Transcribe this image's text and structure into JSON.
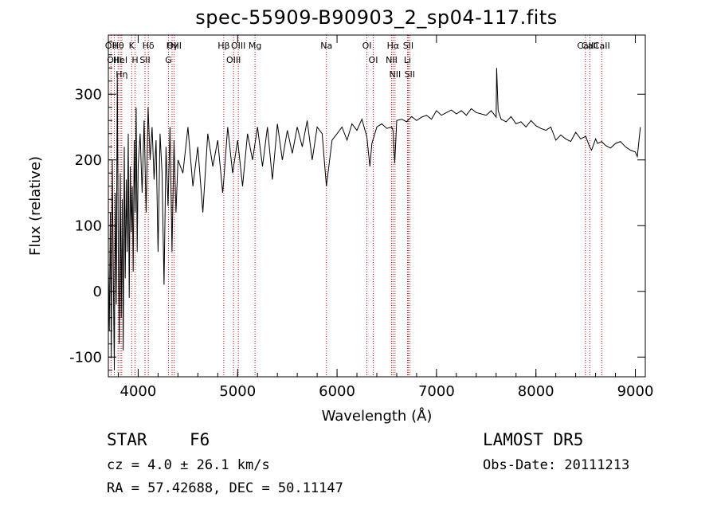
{
  "title": "spec-55909-B90903_2_sp04-117.fits",
  "info": {
    "star_class": "STAR",
    "subclass": "F6",
    "survey": "LAMOST DR5",
    "cz": "cz = 4.0 ± 26.1 km/s",
    "obs_date": "Obs-Date: 20111213",
    "radec": "RA =  57.42688, DEC =  50.11147"
  },
  "colors": {
    "axis": "#000000",
    "spectrum": "#000000",
    "line_marker": "#cc0000",
    "background": "#ffffff"
  },
  "chart_data": {
    "type": "line",
    "title": "spec-55909-B90903_2_sp04-117.fits",
    "xlabel": "Wavelength (Å)",
    "ylabel": "Flux (relative)",
    "xlim": [
      3700,
      9100
    ],
    "ylim": [
      -130,
      390
    ],
    "xticks": [
      4000,
      5000,
      6000,
      7000,
      8000,
      9000
    ],
    "yticks": [
      -100,
      0,
      100,
      200,
      300
    ],
    "grid": false,
    "series": [
      {
        "x": [
          3700,
          3710,
          3720,
          3730,
          3740,
          3750,
          3760,
          3770,
          3780,
          3790,
          3800,
          3810,
          3820,
          3830,
          3840,
          3850,
          3860,
          3870,
          3880,
          3890,
          3900,
          3910,
          3920,
          3930,
          3940,
          3950,
          3960,
          3970,
          3980,
          3990,
          4000,
          4020,
          4040,
          4060,
          4080,
          4100,
          4120,
          4140,
          4160,
          4180,
          4200,
          4220,
          4240,
          4260,
          4280,
          4300,
          4320,
          4340,
          4360,
          4380,
          4400,
          4450,
          4500,
          4550,
          4600,
          4650,
          4700,
          4750,
          4800,
          4850,
          4861,
          4900,
          4950,
          5000,
          5050,
          5100,
          5150,
          5200,
          5250,
          5300,
          5350,
          5400,
          5450,
          5500,
          5550,
          5600,
          5650,
          5700,
          5750,
          5800,
          5850,
          5893,
          5950,
          6000,
          6050,
          6100,
          6150,
          6200,
          6250,
          6300,
          6330,
          6350,
          6400,
          6450,
          6500,
          6550,
          6563,
          6580,
          6600,
          6650,
          6700,
          6750,
          6800,
          6850,
          6900,
          6950,
          7000,
          7050,
          7100,
          7150,
          7200,
          7250,
          7300,
          7350,
          7400,
          7450,
          7500,
          7550,
          7600,
          7605,
          7620,
          7650,
          7700,
          7750,
          7800,
          7850,
          7900,
          7950,
          8000,
          8050,
          8100,
          8150,
          8200,
          8250,
          8300,
          8350,
          8400,
          8450,
          8500,
          8540,
          8560,
          8600,
          8620,
          8660,
          8700,
          8750,
          8800,
          8850,
          8900,
          8950,
          9000,
          9020,
          9050
        ],
        "y": [
          40,
          -60,
          120,
          -100,
          200,
          30,
          -120,
          150,
          -20,
          330,
          60,
          -80,
          180,
          -40,
          140,
          -90,
          220,
          20,
          170,
          60,
          240,
          -10,
          190,
          90,
          160,
          30,
          230,
          120,
          280,
          60,
          190,
          240,
          150,
          260,
          120,
          280,
          200,
          250,
          170,
          230,
          60,
          240,
          180,
          10,
          220,
          130,
          250,
          60,
          230,
          120,
          200,
          180,
          250,
          160,
          220,
          120,
          240,
          190,
          230,
          150,
          170,
          250,
          180,
          230,
          160,
          240,
          200,
          250,
          190,
          250,
          170,
          255,
          200,
          245,
          210,
          250,
          220,
          260,
          200,
          250,
          240,
          160,
          230,
          240,
          250,
          230,
          255,
          245,
          262,
          235,
          190,
          225,
          250,
          255,
          248,
          250,
          245,
          195,
          260,
          262,
          258,
          266,
          260,
          265,
          268,
          262,
          275,
          268,
          272,
          276,
          270,
          275,
          268,
          278,
          272,
          270,
          268,
          275,
          265,
          340,
          275,
          262,
          258,
          266,
          255,
          258,
          250,
          260,
          252,
          248,
          245,
          250,
          230,
          238,
          232,
          228,
          242,
          232,
          236,
          220,
          215,
          232,
          225,
          228,
          222,
          218,
          225,
          228,
          220,
          215,
          212,
          205,
          250
        ]
      }
    ],
    "line_markers": [
      {
        "label": "Hθ",
        "x": 3798
      },
      {
        "label": "OII",
        "x": 3727
      },
      {
        "label": "OIII",
        "x": 3760
      },
      {
        "label": "HeI",
        "x": 3820
      },
      {
        "label": "Hη",
        "x": 3835
      },
      {
        "label": "K",
        "x": 3934
      },
      {
        "label": "H",
        "x": 3969
      },
      {
        "label": "Hδ",
        "x": 4102
      },
      {
        "label": "SII",
        "x": 4069
      },
      {
        "label": "OIII",
        "x": 4363
      },
      {
        "label": "Hγ",
        "x": 4341
      },
      {
        "label": "G",
        "x": 4305
      },
      {
        "label": "OIII",
        "x": 5007
      },
      {
        "label": "OIII",
        "x": 4959
      },
      {
        "label": "Hβ",
        "x": 4861
      },
      {
        "label": "Mg",
        "x": 5175
      },
      {
        "label": "Na",
        "x": 5893
      },
      {
        "label": "OI",
        "x": 6300
      },
      {
        "label": "OI",
        "x": 6364
      },
      {
        "label": "Hα",
        "x": 6563
      },
      {
        "label": "NII",
        "x": 6548
      },
      {
        "label": "NII",
        "x": 6583
      },
      {
        "label": "SII",
        "x": 6716
      },
      {
        "label": "Li",
        "x": 6708
      },
      {
        "label": "SII",
        "x": 6731
      },
      {
        "label": "CaII",
        "x": 8498
      },
      {
        "label": "CaII",
        "x": 8542
      },
      {
        "label": "CaII",
        "x": 8662
      }
    ]
  }
}
